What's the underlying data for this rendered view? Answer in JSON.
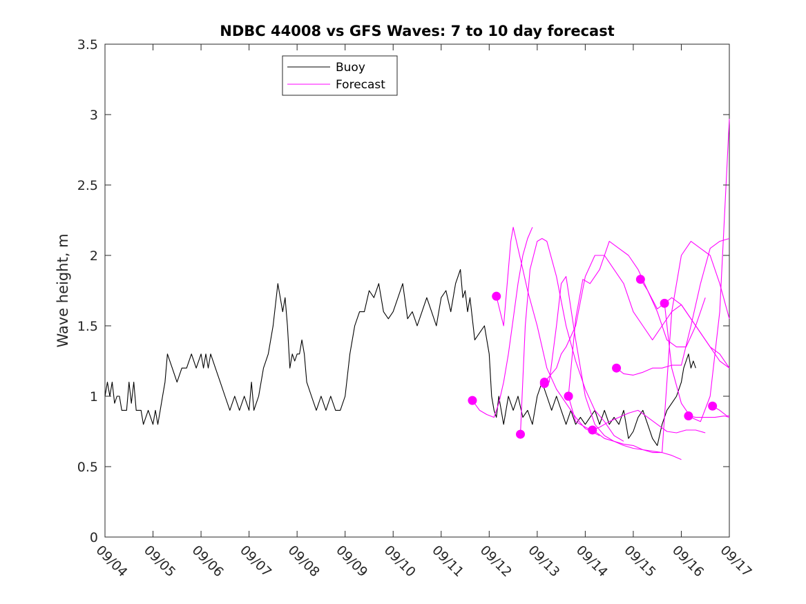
{
  "chart_data": {
    "type": "line",
    "title": "NDBC 44008 vs GFS Waves: 7 to 10 day forecast",
    "xlabel": "",
    "ylabel": "Wave height, m",
    "x_unit": "days since 09/04 00:00",
    "xlim": [
      0,
      13
    ],
    "ylim": [
      0,
      3.5
    ],
    "yticks": [
      0,
      0.5,
      1,
      1.5,
      2,
      2.5,
      3,
      3.5
    ],
    "ytick_labels": [
      "0",
      "0.5",
      "1",
      "1.5",
      "2",
      "2.5",
      "3",
      "3.5"
    ],
    "xticks": [
      0,
      1,
      2,
      3,
      4,
      5,
      6,
      7,
      8,
      9,
      10,
      11,
      12,
      13
    ],
    "xtick_labels": [
      "09/04",
      "09/05",
      "09/06",
      "09/07",
      "09/08",
      "09/09",
      "09/10",
      "09/11",
      "09/12",
      "09/13",
      "09/14",
      "09/15",
      "09/16",
      "09/17"
    ],
    "grid": false,
    "legend": {
      "position": "top-left",
      "entries": [
        {
          "label": "Buoy",
          "color": "#000000"
        },
        {
          "label": "Forecast",
          "color": "#ff00ff"
        }
      ]
    },
    "colors": {
      "buoy": "#000000",
      "forecast": "#ff00ff"
    },
    "buoy": {
      "name": "Buoy",
      "x": [
        0,
        0.05,
        0.1,
        0.15,
        0.2,
        0.25,
        0.3,
        0.35,
        0.4,
        0.45,
        0.5,
        0.55,
        0.6,
        0.65,
        0.7,
        0.75,
        0.8,
        0.85,
        0.9,
        0.95,
        1.0,
        1.05,
        1.1,
        1.15,
        1.2,
        1.25,
        1.3,
        1.4,
        1.5,
        1.6,
        1.7,
        1.8,
        1.9,
        2.0,
        2.05,
        2.1,
        2.15,
        2.2,
        2.3,
        2.4,
        2.5,
        2.6,
        2.7,
        2.8,
        2.9,
        3.0,
        3.05,
        3.1,
        3.15,
        3.2,
        3.3,
        3.4,
        3.5,
        3.6,
        3.7,
        3.75,
        3.8,
        3.85,
        3.9,
        3.95,
        4.0,
        4.05,
        4.1,
        4.15,
        4.2,
        4.3,
        4.4,
        4.5,
        4.6,
        4.7,
        4.8,
        4.9,
        5.0,
        5.1,
        5.2,
        5.3,
        5.4,
        5.5,
        5.6,
        5.7,
        5.8,
        5.9,
        6.0,
        6.1,
        6.2,
        6.3,
        6.4,
        6.5,
        6.6,
        6.7,
        6.8,
        6.9,
        7.0,
        7.1,
        7.2,
        7.3,
        7.4,
        7.45,
        7.5,
        7.55,
        7.6,
        7.7,
        7.8,
        7.9,
        8.0,
        8.05,
        8.1,
        8.15,
        8.2,
        8.3,
        8.4,
        8.5,
        8.6,
        8.7,
        8.8,
        8.9,
        9.0,
        9.1,
        9.2,
        9.3,
        9.4,
        9.5,
        9.6,
        9.7,
        9.8,
        9.9,
        10.0,
        10.1,
        10.2,
        10.3,
        10.4,
        10.5,
        10.6,
        10.7,
        10.8,
        10.9,
        11.0,
        11.1,
        11.2,
        11.3,
        11.4,
        11.5,
        11.6,
        11.7,
        11.8,
        11.9,
        12.0,
        12.05,
        12.1,
        12.15,
        12.2,
        12.25,
        12.3
      ],
      "values": [
        1.0,
        1.1,
        1.0,
        1.1,
        0.95,
        1.0,
        1.0,
        0.9,
        0.9,
        0.9,
        1.1,
        0.95,
        1.1,
        0.9,
        0.9,
        0.9,
        0.8,
        0.85,
        0.9,
        0.85,
        0.8,
        0.9,
        0.8,
        0.9,
        1.0,
        1.1,
        1.3,
        1.2,
        1.1,
        1.2,
        1.2,
        1.3,
        1.2,
        1.3,
        1.2,
        1.3,
        1.2,
        1.3,
        1.2,
        1.1,
        1.0,
        0.9,
        1.0,
        0.9,
        1.0,
        0.9,
        1.1,
        0.9,
        0.95,
        1.0,
        1.2,
        1.3,
        1.5,
        1.8,
        1.6,
        1.7,
        1.5,
        1.2,
        1.3,
        1.25,
        1.3,
        1.3,
        1.4,
        1.3,
        1.1,
        1.0,
        0.9,
        1.0,
        0.9,
        1.0,
        0.9,
        0.9,
        1.0,
        1.3,
        1.5,
        1.6,
        1.6,
        1.75,
        1.7,
        1.8,
        1.6,
        1.55,
        1.6,
        1.7,
        1.8,
        1.55,
        1.6,
        1.5,
        1.6,
        1.7,
        1.6,
        1.5,
        1.7,
        1.75,
        1.6,
        1.8,
        1.9,
        1.7,
        1.75,
        1.6,
        1.7,
        1.4,
        1.45,
        1.5,
        1.3,
        1.0,
        0.9,
        0.85,
        1.0,
        0.8,
        1.0,
        0.9,
        1.0,
        0.85,
        0.9,
        0.8,
        1.0,
        1.1,
        1.0,
        0.9,
        1.0,
        0.9,
        0.8,
        0.9,
        0.8,
        0.85,
        0.8,
        0.85,
        0.9,
        0.8,
        0.9,
        0.8,
        0.85,
        0.8,
        0.9,
        0.7,
        0.75,
        0.85,
        0.9,
        0.8,
        0.7,
        0.65,
        0.8,
        0.9,
        0.95,
        1.0,
        1.1,
        1.2,
        1.25,
        1.3,
        1.2,
        1.25,
        1.2
      ]
    },
    "forecast_runs": [
      {
        "name": "Forecast",
        "x": [
          7.65,
          7.8,
          7.95,
          8.1,
          8.2,
          8.3,
          8.4,
          8.5,
          8.6,
          8.7,
          8.8,
          8.9
        ],
        "values": [
          0.97,
          0.9,
          0.87,
          0.85,
          0.95,
          1.1,
          1.3,
          1.55,
          1.8,
          2.0,
          2.12,
          2.2
        ],
        "marker_index": 0
      },
      {
        "name": "Forecast",
        "x": [
          8.15,
          8.3,
          8.4,
          8.45,
          8.5,
          8.6,
          8.7,
          8.8,
          9.0,
          9.2,
          9.4,
          9.6,
          9.8,
          10.0,
          10.3
        ],
        "values": [
          1.71,
          1.5,
          1.9,
          2.1,
          2.2,
          2.05,
          1.9,
          1.75,
          1.5,
          1.2,
          1.05,
          0.95,
          0.85,
          0.77,
          0.72
        ],
        "marker_index": 0
      },
      {
        "name": "Forecast",
        "x": [
          8.65,
          8.75,
          8.85,
          9.0,
          9.1,
          9.2,
          9.4,
          9.6,
          9.8,
          10.0,
          10.2,
          10.4,
          10.6,
          10.8
        ],
        "values": [
          0.73,
          1.5,
          1.9,
          2.1,
          2.12,
          2.1,
          1.85,
          1.5,
          1.25,
          1.05,
          0.9,
          0.82,
          0.72,
          0.68
        ],
        "marker_index": 0
      },
      {
        "name": "Forecast",
        "x": [
          9.15,
          9.25,
          9.4,
          9.5,
          9.6,
          9.8,
          10.0,
          10.2,
          10.4,
          10.6,
          10.8,
          11.0,
          11.2,
          11.4,
          11.6,
          11.8,
          12.0
        ],
        "values": [
          1.09,
          1.1,
          1.5,
          1.8,
          1.85,
          1.4,
          1.0,
          0.8,
          0.72,
          0.68,
          0.65,
          0.63,
          0.62,
          0.61,
          0.6,
          0.58,
          0.55
        ],
        "marker_index": 0
      },
      {
        "name": "Forecast",
        "x": [
          9.65,
          9.8,
          9.95,
          10.1,
          10.3,
          10.5,
          10.7,
          10.9,
          11.1,
          11.3,
          11.5,
          11.7,
          11.9,
          12.1,
          12.3,
          12.5
        ],
        "values": [
          1.0,
          1.55,
          1.83,
          1.8,
          1.9,
          2.1,
          2.05,
          2.0,
          1.9,
          1.75,
          1.6,
          1.4,
          1.35,
          1.35,
          1.5,
          1.7
        ],
        "marker_index": 0
      },
      {
        "name": "Forecast",
        "x": [
          9.15,
          9.4,
          9.5,
          9.6,
          9.8,
          10.0,
          10.2,
          10.4,
          10.6,
          10.8,
          11.0,
          11.2,
          11.4,
          11.6,
          11.8,
          12.0,
          12.2,
          12.4,
          12.6,
          12.8,
          13.0
        ],
        "values": [
          1.1,
          1.2,
          1.3,
          1.35,
          1.5,
          1.85,
          2.0,
          2.0,
          1.9,
          1.8,
          1.6,
          1.5,
          1.4,
          1.5,
          1.6,
          1.65,
          1.55,
          1.45,
          1.35,
          1.3,
          1.2
        ],
        "marker_index": 0
      },
      {
        "name": "Forecast",
        "x": [
          9.65,
          9.8,
          10.0,
          10.2,
          10.4,
          10.6,
          10.8,
          11.0,
          11.2,
          11.4,
          11.6,
          11.8,
          12.0,
          12.2,
          12.4,
          12.6,
          12.8,
          13.0
        ],
        "values": [
          1.0,
          0.82,
          0.78,
          0.75,
          0.7,
          0.68,
          0.66,
          0.65,
          0.62,
          0.6,
          0.6,
          1.6,
          2.0,
          2.1,
          2.05,
          2.0,
          1.8,
          1.55
        ],
        "marker_index": 0
      },
      {
        "name": "Forecast",
        "x": [
          10.15,
          10.3,
          10.5,
          10.7,
          10.9,
          11.1,
          11.3,
          11.5,
          11.7,
          11.9,
          12.1,
          12.3,
          12.5
        ],
        "values": [
          0.76,
          0.78,
          0.82,
          0.85,
          0.88,
          0.9,
          0.85,
          0.8,
          0.75,
          0.74,
          0.76,
          0.76,
          0.74
        ],
        "marker_index": 0
      },
      {
        "name": "Forecast",
        "x": [
          10.65,
          10.8,
          11.0,
          11.2,
          11.4,
          11.6,
          11.8,
          12.0,
          12.2,
          12.4,
          12.6,
          12.8,
          13.0
        ],
        "values": [
          1.2,
          1.16,
          1.15,
          1.17,
          1.2,
          1.2,
          1.22,
          1.22,
          1.5,
          1.8,
          2.05,
          2.1,
          2.12
        ],
        "marker_index": 0
      },
      {
        "name": "Forecast",
        "x": [
          11.15,
          11.3,
          11.5,
          11.65,
          11.8,
          12.0,
          12.2,
          12.4,
          12.6,
          12.8,
          13.0
        ],
        "values": [
          1.83,
          1.75,
          1.62,
          1.66,
          1.7,
          1.65,
          1.55,
          1.45,
          1.35,
          1.25,
          1.2
        ],
        "marker_index": 0
      },
      {
        "name": "Forecast",
        "x": [
          11.65,
          11.8,
          12.0,
          12.2,
          12.4,
          12.6,
          12.8,
          13.0
        ],
        "values": [
          1.66,
          1.2,
          0.95,
          0.85,
          0.82,
          1.0,
          1.6,
          2.97
        ],
        "marker_index": 0
      },
      {
        "name": "Forecast",
        "x": [
          12.15,
          12.3,
          12.5,
          12.7,
          12.9,
          13.0
        ],
        "values": [
          0.86,
          0.85,
          0.85,
          0.85,
          0.86,
          0.85
        ],
        "marker_index": 0
      },
      {
        "name": "Forecast",
        "x": [
          12.65,
          12.8,
          12.95,
          13.0
        ],
        "values": [
          0.93,
          0.9,
          0.86,
          0.86
        ],
        "marker_index": 0
      }
    ]
  }
}
